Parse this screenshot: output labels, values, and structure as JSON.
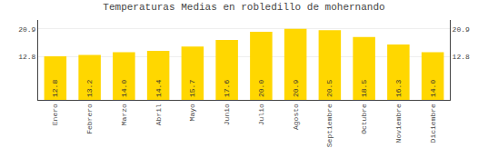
{
  "chart_data": {
    "type": "bar",
    "title": "Temperaturas Medias en robledillo de mohernando",
    "categories": [
      "Enero",
      "Febrero",
      "Marzo",
      "Abril",
      "Mayo",
      "Junio",
      "Julio",
      "Agosto",
      "Septiembre",
      "Octubre",
      "Noviembre",
      "Diciembre"
    ],
    "values": [
      12.8,
      13.2,
      14.0,
      14.4,
      15.7,
      17.6,
      20.0,
      20.9,
      20.5,
      18.5,
      16.3,
      14.0
    ],
    "value_labels": [
      "12.8",
      "13.2",
      "14.0",
      "14.4",
      "15.7",
      "17.6",
      "20.0",
      "20.9",
      "20.5",
      "18.5",
      "16.3",
      "14.0"
    ],
    "color": "#FFD700",
    "ylim": [
      0,
      23.5
    ],
    "yticks": [
      12.8,
      20.9
    ],
    "y2lim": [
      0,
      23.5
    ],
    "y2ticks": [
      12.8,
      20.9
    ],
    "grid": true,
    "data_labels": true
  }
}
